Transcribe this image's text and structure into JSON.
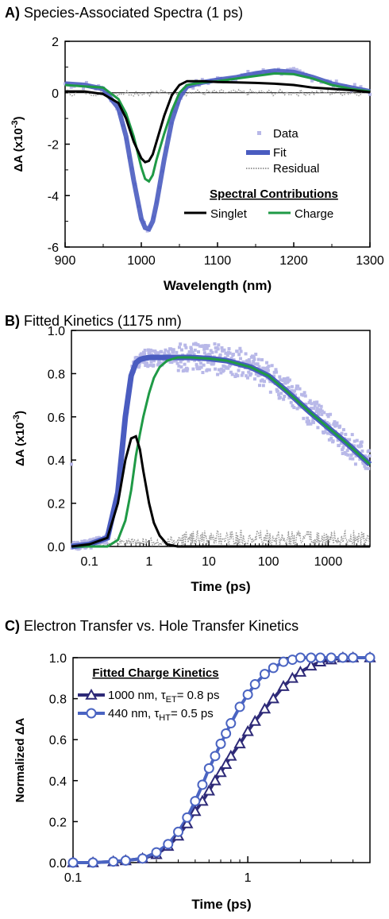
{
  "colors": {
    "data": "#b8b8e8",
    "fit": "#4a5cc0",
    "residual": "#999999",
    "singlet": "#000000",
    "charge": "#1f9a46",
    "et": "#2e2a78",
    "ht": "#4a64c2"
  },
  "panels": [
    {
      "label": "A)",
      "title": "Species-Associated Spectra (1 ps)"
    },
    {
      "label": "B)",
      "title": "Fitted Kinetics (1175 nm)"
    },
    {
      "label": "C)",
      "title": "Electron Transfer vs. Hole Transfer Kinetics"
    }
  ],
  "chart_data": [
    {
      "type": "line",
      "title": "Species-Associated Spectra (1 ps)",
      "xlabel": "Wavelength (nm)",
      "ylabel": "ΔA (x10⁻³)",
      "xlim": [
        900,
        1300
      ],
      "ylim": [
        -6,
        2
      ],
      "x_ticks": [
        "900",
        "1000",
        "1100",
        "1200",
        "1300"
      ],
      "y_ticks": [
        "-6",
        "-4",
        "-2",
        "0",
        "2"
      ],
      "legend": [
        "Data",
        "Fit",
        "Residual"
      ],
      "legend2_title": "Spectral Contributions",
      "legend2": [
        "Singlet",
        "Charge"
      ],
      "x": [
        900,
        925,
        950,
        970,
        980,
        990,
        1000,
        1005,
        1010,
        1015,
        1020,
        1030,
        1040,
        1050,
        1060,
        1080,
        1100,
        1125,
        1150,
        1175,
        1200,
        1225,
        1250,
        1275,
        1300
      ],
      "series": [
        {
          "name": "Fit",
          "values": [
            0.35,
            0.3,
            0.15,
            -0.6,
            -1.7,
            -3.4,
            -4.9,
            -5.25,
            -5.3,
            -5.0,
            -4.3,
            -2.6,
            -1.1,
            -0.2,
            0.25,
            0.4,
            0.5,
            0.6,
            0.75,
            0.85,
            0.8,
            0.6,
            0.35,
            0.2,
            0.05
          ]
        },
        {
          "name": "Singlet",
          "values": [
            0.05,
            0.05,
            -0.05,
            -0.4,
            -1.0,
            -1.9,
            -2.55,
            -2.7,
            -2.65,
            -2.4,
            -1.9,
            -0.9,
            -0.1,
            0.3,
            0.45,
            0.45,
            0.42,
            0.4,
            0.38,
            0.35,
            0.3,
            0.2,
            0.15,
            0.1,
            0.02
          ]
        },
        {
          "name": "Charge",
          "values": [
            0.3,
            0.25,
            0.2,
            -0.25,
            -0.8,
            -1.7,
            -2.9,
            -3.35,
            -3.45,
            -3.2,
            -2.6,
            -1.6,
            -0.7,
            0.0,
            0.3,
            0.4,
            0.45,
            0.55,
            0.65,
            0.75,
            0.72,
            0.55,
            0.3,
            0.15,
            0.05
          ]
        },
        {
          "name": "Residual",
          "values": [
            0.05,
            -0.1,
            0.08,
            -0.05,
            0.1,
            -0.08,
            0.05,
            -0.12,
            0.1,
            -0.06,
            0.12,
            -0.1,
            0.06,
            -0.08,
            0.05,
            -0.05,
            0.08,
            -0.06,
            0.1,
            -0.08,
            0.05,
            -0.1,
            0.06,
            -0.04,
            0.03
          ]
        }
      ]
    },
    {
      "type": "line",
      "title": "Fitted Kinetics (1175 nm)",
      "xlabel": "Time (ps)",
      "ylabel": "ΔA (x10⁻³)",
      "x_scale": "log",
      "xlim": [
        0.05,
        5000
      ],
      "ylim": [
        0,
        1
      ],
      "x_ticks": [
        "0.1",
        "1",
        "10",
        "100",
        "1000"
      ],
      "y_ticks": [
        "0.0",
        "0.2",
        "0.4",
        "0.6",
        "0.8",
        "1.0"
      ],
      "x": [
        0.05,
        0.1,
        0.2,
        0.3,
        0.4,
        0.5,
        0.6,
        0.7,
        0.8,
        1,
        1.2,
        1.5,
        2,
        3,
        5,
        10,
        20,
        50,
        100,
        200,
        500,
        1000,
        2000,
        5000
      ],
      "series": [
        {
          "name": "Fit",
          "values": [
            0.0,
            0.01,
            0.04,
            0.25,
            0.6,
            0.79,
            0.85,
            0.865,
            0.87,
            0.875,
            0.875,
            0.875,
            0.875,
            0.875,
            0.875,
            0.87,
            0.86,
            0.83,
            0.79,
            0.72,
            0.62,
            0.55,
            0.48,
            0.38
          ]
        },
        {
          "name": "Singlet",
          "values": [
            0.0,
            0.01,
            0.04,
            0.2,
            0.4,
            0.5,
            0.51,
            0.45,
            0.35,
            0.2,
            0.11,
            0.05,
            0.01,
            0.0,
            0.0,
            0.0,
            0.0,
            0.0,
            0.0,
            0.0,
            0.0,
            0.0,
            0.0,
            0.0
          ]
        },
        {
          "name": "Charge",
          "values": [
            0.0,
            0.0,
            0.0,
            0.03,
            0.12,
            0.26,
            0.42,
            0.52,
            0.6,
            0.71,
            0.78,
            0.83,
            0.86,
            0.875,
            0.875,
            0.87,
            0.86,
            0.83,
            0.79,
            0.72,
            0.62,
            0.55,
            0.48,
            0.38
          ]
        }
      ]
    },
    {
      "type": "line",
      "title": "Electron Transfer vs. Hole Transfer Kinetics",
      "xlabel": "Time (ps)",
      "ylabel": "Normalized ΔA",
      "x_scale": "log",
      "xlim": [
        0.1,
        5
      ],
      "ylim": [
        0,
        1
      ],
      "x_ticks": [
        "0.1",
        "1"
      ],
      "y_ticks": [
        "0.0",
        "0.2",
        "0.4",
        "0.6",
        "0.8",
        "1.0"
      ],
      "legend_title": "Fitted Charge Kinetics",
      "legend": [
        {
          "main": "1000 nm, τ",
          "sub": "ET",
          "tail": "= 0.8 ps"
        },
        {
          "main": "440 nm, τ",
          "sub": "HT",
          "tail": "= 0.5 ps"
        }
      ],
      "x": [
        0.1,
        0.13,
        0.17,
        0.2,
        0.25,
        0.3,
        0.35,
        0.4,
        0.45,
        0.5,
        0.55,
        0.6,
        0.65,
        0.7,
        0.75,
        0.8,
        0.9,
        1.0,
        1.1,
        1.25,
        1.4,
        1.6,
        1.8,
        2.0,
        2.3,
        2.6,
        3.0,
        3.5,
        4.0,
        5.0
      ],
      "series": [
        {
          "name": "1000 nm, τET= 0.8 ps",
          "values": [
            0.0,
            0.0,
            0.005,
            0.01,
            0.02,
            0.04,
            0.08,
            0.13,
            0.19,
            0.25,
            0.3,
            0.35,
            0.4,
            0.44,
            0.48,
            0.52,
            0.58,
            0.64,
            0.69,
            0.75,
            0.8,
            0.86,
            0.9,
            0.93,
            0.96,
            0.98,
            0.99,
            1.0,
            1.0,
            1.0
          ]
        },
        {
          "name": "440 nm, τHT= 0.5 ps",
          "values": [
            0.0,
            0.0,
            0.005,
            0.01,
            0.02,
            0.05,
            0.09,
            0.15,
            0.22,
            0.3,
            0.38,
            0.46,
            0.52,
            0.58,
            0.63,
            0.68,
            0.76,
            0.82,
            0.87,
            0.92,
            0.95,
            0.98,
            0.99,
            1.0,
            1.0,
            1.0,
            1.0,
            1.0,
            1.0,
            1.0
          ]
        }
      ]
    }
  ]
}
